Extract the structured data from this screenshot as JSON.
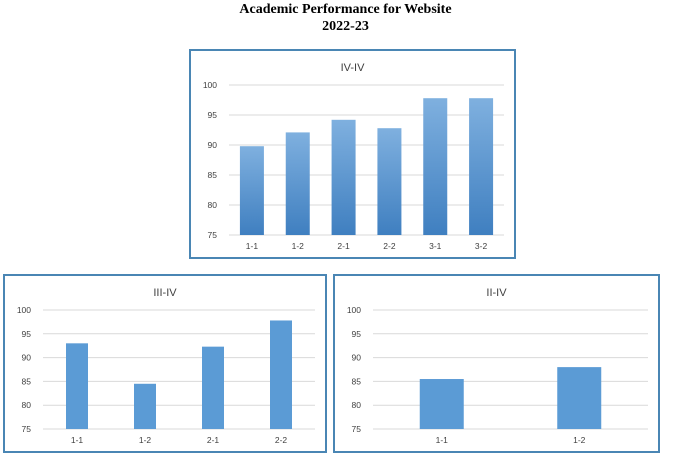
{
  "page": {
    "title_line1": "Academic Performance for Website",
    "title_line2": "2022-23"
  },
  "colors": {
    "bar": "#5b9bd5",
    "bar_light": "#7fb0df",
    "bar_dark": "#3f7fc0",
    "grid": "#d9d9d9",
    "frame": "#4a86b4"
  },
  "chart_data": [
    {
      "type": "bar",
      "title": "IV-IV",
      "categories": [
        "1-1",
        "1-2",
        "2-1",
        "2-2",
        "3-1",
        "3-2"
      ],
      "values": [
        89.8,
        92.1,
        94.2,
        92.8,
        97.8,
        97.8
      ],
      "ylim": [
        75,
        100
      ],
      "yticks": [
        75,
        80,
        85,
        90,
        95,
        100
      ],
      "grid": true,
      "gradient": true
    },
    {
      "type": "bar",
      "title": "III-IV",
      "categories": [
        "1-1",
        "1-2",
        "2-1",
        "2-2"
      ],
      "values": [
        93,
        84.5,
        92.3,
        97.8
      ],
      "ylim": [
        75,
        100
      ],
      "yticks": [
        75,
        80,
        85,
        90,
        95,
        100
      ],
      "grid": true,
      "gradient": false
    },
    {
      "type": "bar",
      "title": "II-IV",
      "categories": [
        "1-1",
        "1-2"
      ],
      "values": [
        85.5,
        88
      ],
      "ylim": [
        75,
        100
      ],
      "yticks": [
        75,
        80,
        85,
        90,
        95,
        100
      ],
      "grid": true,
      "gradient": false
    }
  ]
}
